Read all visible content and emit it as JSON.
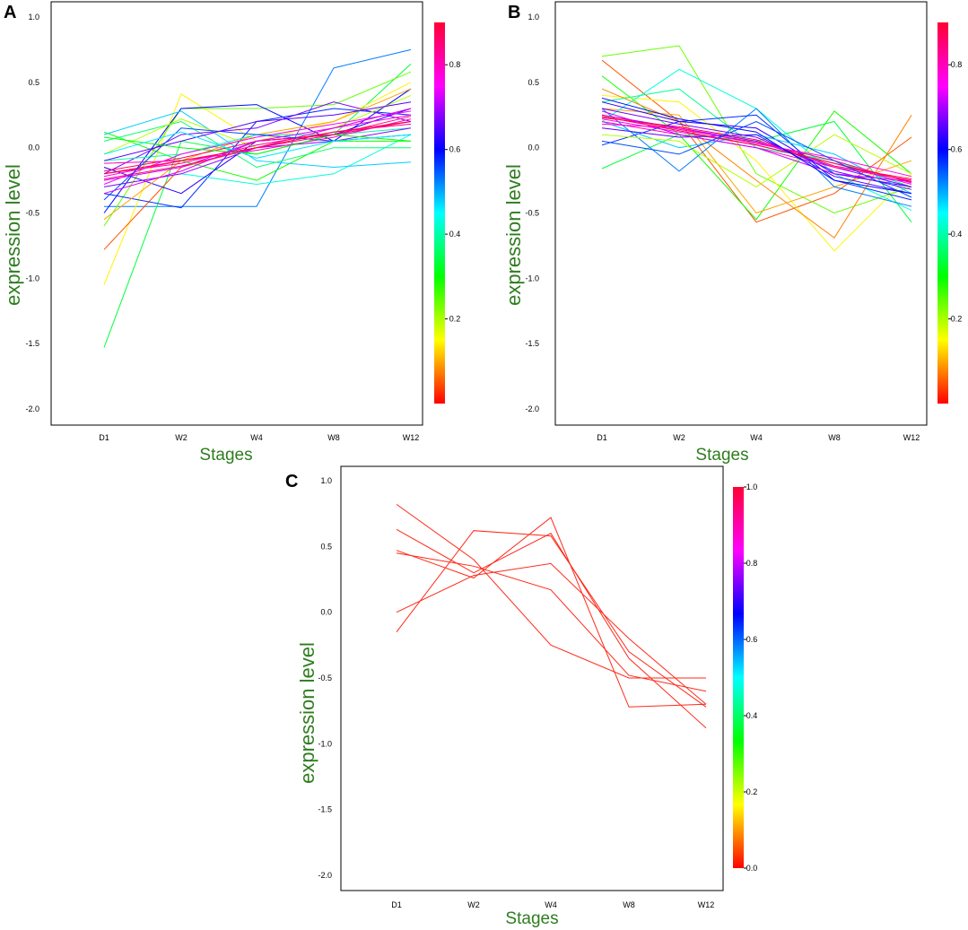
{
  "chart_data": [
    {
      "panel_label": "A",
      "type": "line",
      "xlabel": "Stages",
      "ylabel": "expression level",
      "categories": [
        "D1",
        "W2",
        "W4",
        "W8",
        "W12"
      ],
      "ylim": [
        -2.1,
        1.1
      ],
      "yticks": [
        "-2.0",
        "-1.5",
        "-1.0",
        "-0.5",
        "0.0",
        "0.5",
        "1.0"
      ],
      "yticks_values": [
        -2.0,
        -1.5,
        -1.0,
        -0.5,
        0.0,
        0.5,
        1.0
      ],
      "colorbar": {
        "range": [
          0.0,
          0.9
        ],
        "ticks": [
          "0.2",
          "0.4",
          "0.6",
          "0.8"
        ],
        "tick_values": [
          0.2,
          0.4,
          0.6,
          0.8
        ]
      },
      "series": [
        {
          "membership": 0.55,
          "values": [
            -0.45,
            -0.45,
            -0.45,
            0.61,
            0.75
          ]
        },
        {
          "membership": 0.35,
          "values": [
            -1.53,
            0.05,
            -0.05,
            0.1,
            0.64
          ]
        },
        {
          "membership": 0.15,
          "values": [
            -1.05,
            0.41,
            0.05,
            0.2,
            0.5
          ]
        },
        {
          "membership": 0.05,
          "values": [
            -0.78,
            -0.15,
            0.0,
            0.15,
            0.3
          ]
        },
        {
          "membership": 0.25,
          "values": [
            -0.6,
            0.3,
            0.3,
            0.33,
            0.58
          ]
        },
        {
          "membership": 0.62,
          "values": [
            -0.5,
            0.3,
            0.33,
            0.05,
            0.45
          ]
        },
        {
          "membership": 0.6,
          "values": [
            -0.35,
            -0.46,
            0.2,
            0.3,
            0.25
          ]
        },
        {
          "membership": 0.45,
          "values": [
            -0.3,
            -0.2,
            -0.28,
            -0.2,
            0.1
          ]
        },
        {
          "membership": 0.3,
          "values": [
            0.12,
            -0.1,
            -0.25,
            0.05,
            0.05
          ]
        },
        {
          "membership": 0.5,
          "values": [
            0.1,
            0.28,
            -0.1,
            -0.15,
            -0.11
          ]
        },
        {
          "membership": 0.38,
          "values": [
            0.05,
            0.2,
            -0.15,
            0.0,
            0.0
          ]
        },
        {
          "membership": 0.7,
          "values": [
            -0.2,
            0.1,
            0.15,
            0.35,
            0.2
          ]
        },
        {
          "membership": 0.65,
          "values": [
            -0.15,
            -0.35,
            0.05,
            0.1,
            0.3
          ]
        },
        {
          "membership": 0.2,
          "values": [
            -0.05,
            0.22,
            0.0,
            0.15,
            0.4
          ]
        },
        {
          "membership": 0.1,
          "values": [
            -0.55,
            -0.1,
            0.1,
            0.2,
            0.45
          ]
        },
        {
          "membership": 0.42,
          "values": [
            -0.1,
            -0.05,
            0.1,
            0.1,
            0.15
          ]
        },
        {
          "membership": 0.75,
          "values": [
            -0.25,
            -0.15,
            0.05,
            0.1,
            0.2
          ]
        },
        {
          "membership": 0.8,
          "values": [
            -0.22,
            -0.1,
            0.0,
            0.15,
            0.25
          ]
        },
        {
          "membership": 0.85,
          "values": [
            -0.2,
            -0.12,
            0.02,
            0.12,
            0.18
          ]
        },
        {
          "membership": 0.88,
          "values": [
            -0.18,
            -0.08,
            0.05,
            0.1,
            0.2
          ]
        },
        {
          "membership": 0.72,
          "values": [
            -0.3,
            -0.2,
            0.0,
            0.05,
            0.15
          ]
        },
        {
          "membership": 0.78,
          "values": [
            -0.28,
            -0.05,
            0.08,
            0.18,
            0.28
          ]
        },
        {
          "membership": 0.82,
          "values": [
            -0.12,
            -0.1,
            -0.02,
            0.08,
            0.22
          ]
        },
        {
          "membership": 0.58,
          "values": [
            -0.4,
            0.15,
            0.1,
            0.05,
            0.1
          ]
        },
        {
          "membership": 0.68,
          "values": [
            -0.1,
            0.05,
            0.2,
            0.25,
            0.35
          ]
        },
        {
          "membership": 0.32,
          "values": [
            0.08,
            0.0,
            -0.05,
            0.1,
            0.05
          ]
        },
        {
          "membership": 0.48,
          "values": [
            -0.05,
            0.12,
            -0.08,
            0.05,
            0.1
          ]
        },
        {
          "membership": 0.86,
          "values": [
            -0.24,
            -0.14,
            0.0,
            0.1,
            0.24
          ]
        },
        {
          "membership": 0.9,
          "values": [
            -0.2,
            -0.1,
            0.0,
            0.12,
            0.2
          ]
        },
        {
          "membership": 0.76,
          "values": [
            -0.35,
            -0.18,
            0.05,
            0.15,
            0.3
          ]
        }
      ]
    },
    {
      "panel_label": "B",
      "type": "line",
      "xlabel": "Stages",
      "ylabel": "expression level",
      "categories": [
        "D1",
        "W2",
        "W4",
        "W8",
        "W12"
      ],
      "ylim": [
        -2.1,
        1.1
      ],
      "yticks": [
        "-2.0",
        "-1.5",
        "-1.0",
        "-0.5",
        "0.0",
        "0.5",
        "1.0"
      ],
      "yticks_values": [
        -2.0,
        -1.5,
        -1.0,
        -0.5,
        0.0,
        0.5,
        1.0
      ],
      "colorbar": {
        "range": [
          0.0,
          0.9
        ],
        "ticks": [
          "0.2",
          "0.4",
          "0.6",
          "0.8"
        ],
        "tick_values": [
          0.2,
          0.4,
          0.6,
          0.8
        ]
      },
      "series": [
        {
          "membership": 0.05,
          "values": [
            0.67,
            0.2,
            -0.57,
            -0.35,
            0.08
          ]
        },
        {
          "membership": 0.25,
          "values": [
            0.7,
            0.78,
            -0.2,
            -0.5,
            -0.3
          ]
        },
        {
          "membership": 0.3,
          "values": [
            0.55,
            0.1,
            -0.55,
            0.28,
            -0.2
          ]
        },
        {
          "membership": 0.15,
          "values": [
            0.4,
            0.35,
            -0.1,
            -0.79,
            -0.2
          ]
        },
        {
          "membership": 0.08,
          "values": [
            0.45,
            0.2,
            -0.25,
            -0.69,
            0.25
          ]
        },
        {
          "membership": 0.1,
          "values": [
            0.3,
            0.25,
            -0.5,
            -0.3,
            -0.1
          ]
        },
        {
          "membership": 0.35,
          "values": [
            -0.16,
            0.1,
            0.05,
            0.2,
            -0.57
          ]
        },
        {
          "membership": 0.45,
          "values": [
            0.2,
            0.6,
            0.3,
            -0.2,
            -0.48
          ]
        },
        {
          "membership": 0.4,
          "values": [
            0.35,
            0.45,
            0.0,
            -0.1,
            -0.3
          ]
        },
        {
          "membership": 0.55,
          "values": [
            0.3,
            -0.18,
            0.3,
            -0.3,
            -0.45
          ]
        },
        {
          "membership": 0.6,
          "values": [
            0.02,
            0.2,
            0.25,
            -0.25,
            -0.4
          ]
        },
        {
          "membership": 0.65,
          "values": [
            0.35,
            0.2,
            0.15,
            -0.2,
            -0.3
          ]
        },
        {
          "membership": 0.5,
          "values": [
            0.2,
            0.0,
            0.1,
            -0.05,
            -0.35
          ]
        },
        {
          "membership": 0.2,
          "values": [
            0.1,
            0.05,
            -0.3,
            0.1,
            -0.2
          ]
        },
        {
          "membership": 0.72,
          "values": [
            0.25,
            0.15,
            0.05,
            -0.15,
            -0.3
          ]
        },
        {
          "membership": 0.78,
          "values": [
            0.22,
            0.12,
            0.02,
            -0.12,
            -0.28
          ]
        },
        {
          "membership": 0.82,
          "values": [
            0.2,
            0.1,
            0.0,
            -0.15,
            -0.25
          ]
        },
        {
          "membership": 0.85,
          "values": [
            0.25,
            0.14,
            0.04,
            -0.1,
            -0.27
          ]
        },
        {
          "membership": 0.88,
          "values": [
            0.23,
            0.16,
            0.06,
            -0.14,
            -0.24
          ]
        },
        {
          "membership": 0.7,
          "values": [
            0.3,
            0.18,
            0.08,
            -0.18,
            -0.32
          ]
        },
        {
          "membership": 0.68,
          "values": [
            0.15,
            0.08,
            0.1,
            -0.22,
            -0.35
          ]
        },
        {
          "membership": 0.75,
          "values": [
            0.28,
            0.1,
            0.0,
            -0.2,
            -0.26
          ]
        },
        {
          "membership": 0.8,
          "values": [
            0.18,
            0.15,
            0.03,
            -0.08,
            -0.22
          ]
        },
        {
          "membership": 0.9,
          "values": [
            0.24,
            0.13,
            0.02,
            -0.12,
            -0.26
          ]
        },
        {
          "membership": 0.58,
          "values": [
            0.05,
            -0.05,
            0.2,
            -0.1,
            -0.38
          ]
        },
        {
          "membership": 0.62,
          "values": [
            0.38,
            0.22,
            0.12,
            -0.25,
            -0.35
          ]
        }
      ]
    },
    {
      "panel_label": "C",
      "type": "line",
      "xlabel": "Stages",
      "ylabel": "expression level",
      "categories": [
        "D1",
        "W2",
        "W4",
        "W8",
        "W12"
      ],
      "ylim": [
        -2.1,
        1.1
      ],
      "yticks": [
        "-2.0",
        "-1.5",
        "-1.0",
        "-0.5",
        "0.0",
        "0.5",
        "1.0"
      ],
      "yticks_values": [
        -2.0,
        -1.5,
        -1.0,
        -0.5,
        0.0,
        0.5,
        1.0
      ],
      "colorbar": {
        "range": [
          0.0,
          1.0
        ],
        "ticks": [
          "0.0",
          "0.2",
          "0.4",
          "0.6",
          "0.8",
          "1.0"
        ],
        "tick_values": [
          0.0,
          0.2,
          0.4,
          0.6,
          0.8,
          1.0
        ]
      },
      "series": [
        {
          "membership": 0.02,
          "values": [
            0.82,
            0.4,
            -0.25,
            -0.5,
            -0.5
          ]
        },
        {
          "membership": 0.02,
          "values": [
            0.63,
            0.3,
            0.6,
            -0.35,
            -0.88
          ]
        },
        {
          "membership": 0.02,
          "values": [
            0.47,
            0.26,
            0.72,
            -0.72,
            -0.7
          ]
        },
        {
          "membership": 0.02,
          "values": [
            0.45,
            0.35,
            0.17,
            -0.48,
            -0.6
          ]
        },
        {
          "membership": 0.02,
          "values": [
            0.0,
            0.28,
            0.37,
            -0.2,
            -0.7
          ]
        },
        {
          "membership": 0.02,
          "values": [
            -0.15,
            0.62,
            0.58,
            -0.3,
            -0.72
          ]
        }
      ]
    }
  ]
}
